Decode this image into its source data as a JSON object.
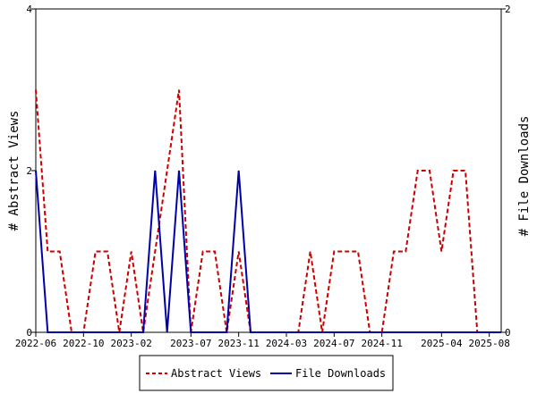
{
  "chart_data": {
    "type": "line",
    "x_tick_labels": [
      "2022-06",
      "2022-10",
      "2023-02",
      "2023-07",
      "2023-11",
      "2024-03",
      "2024-07",
      "2024-11",
      "2025-04",
      "2025-08"
    ],
    "x_tick_months": [
      0,
      4,
      8,
      13,
      17,
      21,
      25,
      29,
      34,
      38
    ],
    "x_range_months": [
      0,
      39
    ],
    "ylabel_left": "# Abstract Views",
    "ylabel_right": "# File Downloads",
    "ylim_left": [
      0,
      4
    ],
    "ylim_right": [
      0,
      2
    ],
    "yticks_left": [
      "0",
      "2",
      "4"
    ],
    "yticks_right": [
      "0",
      "2"
    ],
    "grid": false,
    "legend_position": "bottom",
    "series": [
      {
        "name": "Abstract Views",
        "axis": "left",
        "color": "#cc0000",
        "style": "dashed",
        "x_months": [
          0,
          1,
          2,
          3,
          4,
          5,
          6,
          7,
          8,
          9,
          10,
          11,
          12,
          13,
          14,
          15,
          16,
          17,
          18,
          19,
          20,
          21,
          22,
          23,
          24,
          25,
          26,
          27,
          28,
          29,
          30,
          31,
          32,
          33,
          34,
          35,
          36,
          37,
          38,
          39
        ],
        "values": [
          3,
          1,
          1,
          0,
          0,
          1,
          1,
          0,
          1,
          0,
          1,
          2,
          3,
          0,
          1,
          1,
          0,
          1,
          0,
          0,
          0,
          0,
          0,
          1,
          0,
          1,
          1,
          1,
          0,
          0,
          1,
          1,
          2,
          2,
          1,
          2,
          2,
          0,
          0,
          0
        ]
      },
      {
        "name": "File Downloads",
        "axis": "right",
        "color": "#0000aa",
        "style": "solid",
        "x_months": [
          0,
          1,
          2,
          3,
          4,
          5,
          6,
          7,
          8,
          9,
          10,
          11,
          12,
          13,
          14,
          15,
          16,
          17,
          18,
          19,
          20,
          21,
          22,
          23,
          24,
          25,
          26,
          27,
          28,
          29,
          30,
          31,
          32,
          33,
          34,
          35,
          36,
          37,
          38,
          39
        ],
        "values": [
          1,
          0,
          0,
          0,
          0,
          0,
          0,
          0,
          0,
          0,
          1,
          0,
          1,
          0,
          0,
          0,
          0,
          1,
          0,
          0,
          0,
          0,
          0,
          0,
          0,
          0,
          0,
          0,
          0,
          0,
          0,
          0,
          0,
          0,
          0,
          0,
          0,
          0,
          0,
          0
        ]
      }
    ]
  }
}
